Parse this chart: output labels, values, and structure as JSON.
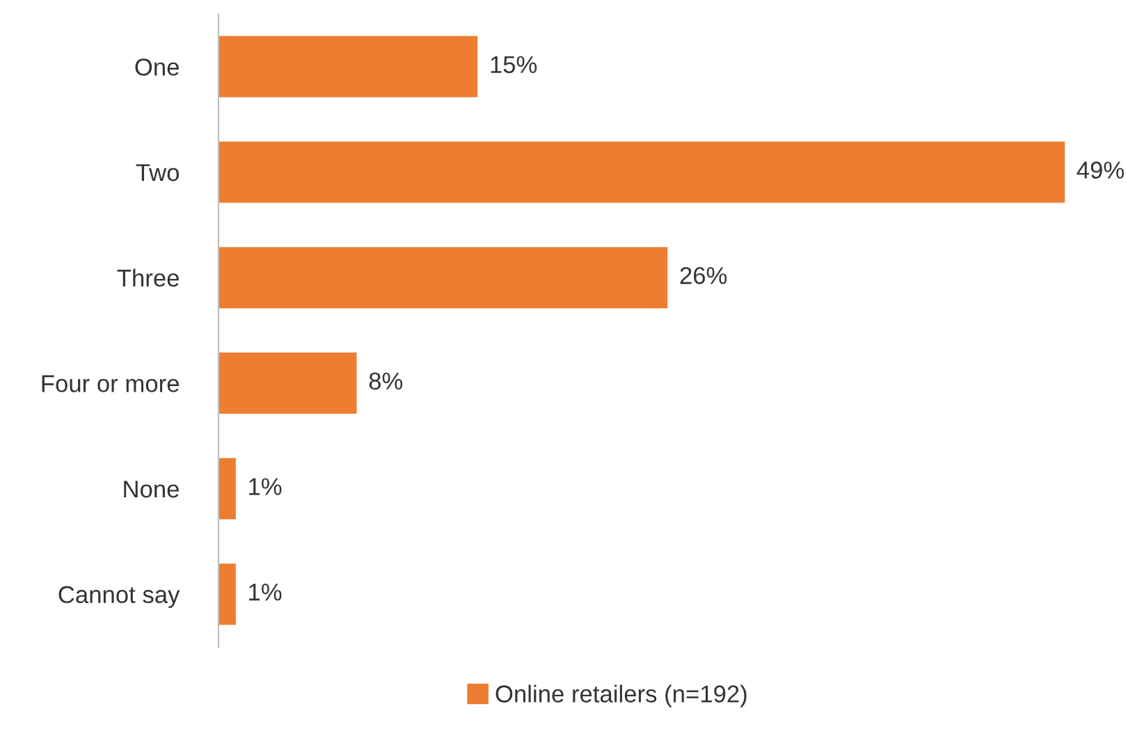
{
  "chart_data": {
    "type": "bar",
    "orientation": "horizontal",
    "categories": [
      "One",
      "Two",
      "Three",
      "Four or more",
      "None",
      "Cannot say"
    ],
    "series": [
      {
        "name": "Online retailers (n=192)",
        "color": "#ed7d31",
        "values": [
          15,
          49,
          26,
          8,
          1,
          1
        ],
        "value_labels": [
          "15%",
          "49%",
          "26%",
          "8%",
          "1%",
          "1%"
        ]
      }
    ],
    "legend": "bottom",
    "grid": false
  }
}
